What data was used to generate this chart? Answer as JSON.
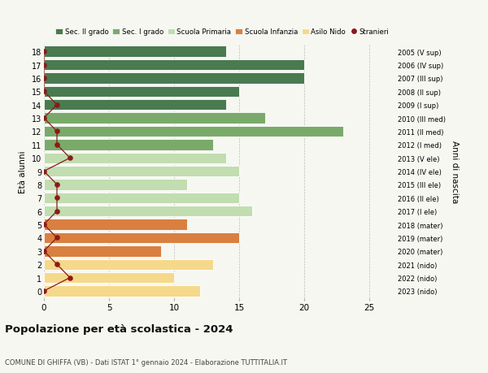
{
  "ages": [
    18,
    17,
    16,
    15,
    14,
    13,
    12,
    11,
    10,
    9,
    8,
    7,
    6,
    5,
    4,
    3,
    2,
    1,
    0
  ],
  "years_labels": [
    "2005 (V sup)",
    "2006 (IV sup)",
    "2007 (III sup)",
    "2008 (II sup)",
    "2009 (I sup)",
    "2010 (III med)",
    "2011 (II med)",
    "2012 (I med)",
    "2013 (V ele)",
    "2014 (IV ele)",
    "2015 (III ele)",
    "2016 (II ele)",
    "2017 (I ele)",
    "2018 (mater)",
    "2019 (mater)",
    "2020 (mater)",
    "2021 (nido)",
    "2022 (nido)",
    "2023 (nido)"
  ],
  "bar_values": [
    14,
    20,
    20,
    15,
    14,
    17,
    23,
    13,
    14,
    15,
    11,
    15,
    16,
    11,
    15,
    9,
    13,
    10,
    12
  ],
  "bar_colors": [
    "#4a7a50",
    "#4a7a50",
    "#4a7a50",
    "#4a7a50",
    "#4a7a50",
    "#7aaa6a",
    "#7aaa6a",
    "#7aaa6a",
    "#c2ddb0",
    "#c2ddb0",
    "#c2ddb0",
    "#c2ddb0",
    "#c2ddb0",
    "#d98040",
    "#d98040",
    "#d98040",
    "#f5d98b",
    "#f5d98b",
    "#f5d98b"
  ],
  "stranieri_x": [
    0,
    0,
    0,
    0,
    1,
    0,
    1,
    1,
    2,
    0,
    1,
    1,
    1,
    0,
    1,
    0,
    1,
    2,
    0
  ],
  "legend_labels": [
    "Sec. II grado",
    "Sec. I grado",
    "Scuola Primaria",
    "Scuola Infanzia",
    "Asilo Nido",
    "Stranieri"
  ],
  "legend_colors": [
    "#4a7a50",
    "#7aaa6a",
    "#c2ddb0",
    "#d98040",
    "#f5d98b",
    "#8b1a1a"
  ],
  "title": "Popolazione per età scolastica - 2024",
  "subtitle": "COMUNE DI GHIFFA (VB) - Dati ISTAT 1° gennaio 2024 - Elaborazione TUTTITALIA.IT",
  "ylabel_left": "Età alunni",
  "ylabel_right": "Anni di nascita",
  "xlim": [
    0,
    27
  ],
  "background_color": "#f7f7f2",
  "line_color": "#8b1a1a",
  "grid_color": "#bbbbbb"
}
